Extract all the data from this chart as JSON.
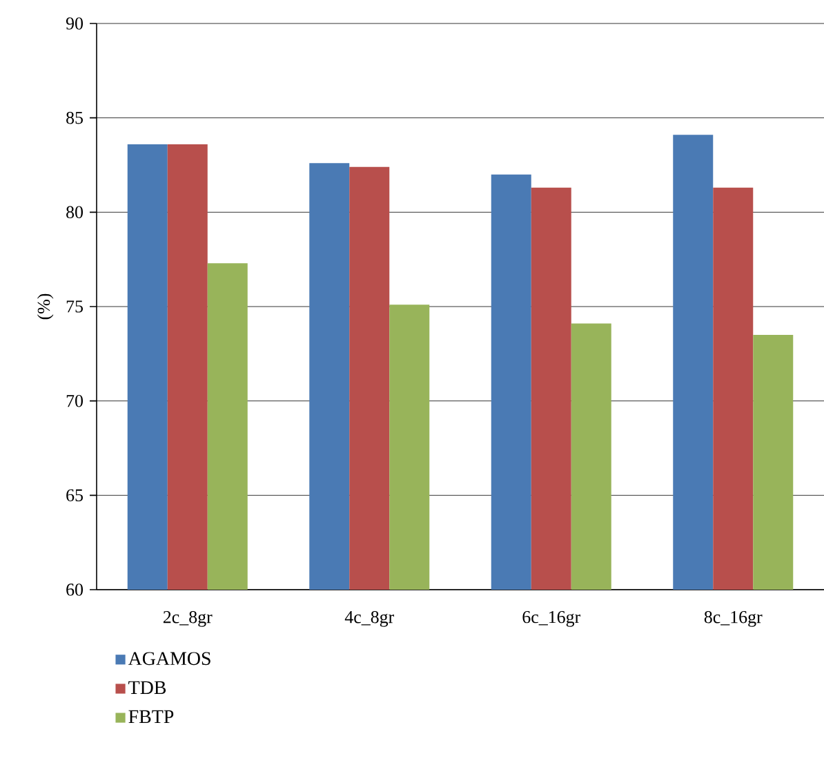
{
  "chart_data": {
    "type": "bar",
    "ylabel": "(%)",
    "categories": [
      "2c_8gr",
      "4c_8gr",
      "6c_16gr",
      "8c_16gr"
    ],
    "series": [
      {
        "name": "AGAMOS",
        "color": "#4a7ab4",
        "values": [
          83.6,
          82.6,
          82.0,
          84.1
        ]
      },
      {
        "name": "TDB",
        "color": "#b84f4c",
        "values": [
          83.6,
          82.4,
          81.3,
          81.3
        ]
      },
      {
        "name": "FBTP",
        "color": "#98b45a",
        "values": [
          77.3,
          75.1,
          74.1,
          73.5
        ]
      }
    ],
    "ylim": [
      60,
      90
    ],
    "yticks": [
      60,
      65,
      70,
      75,
      80,
      85,
      90
    ],
    "grid": "y",
    "legend": "bottom"
  }
}
